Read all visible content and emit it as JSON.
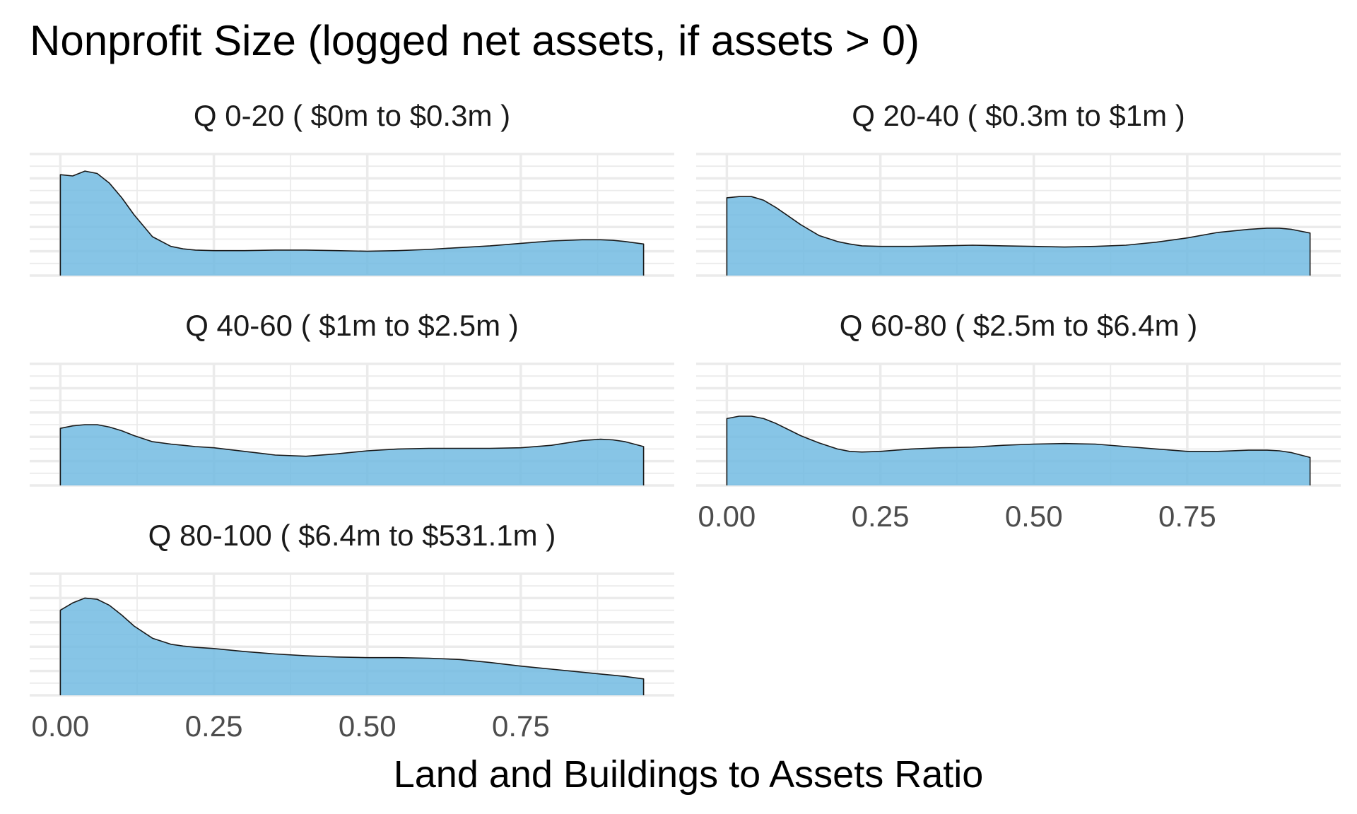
{
  "chart_data": {
    "type": "area",
    "subtype": "density-facets",
    "title": "Nonprofit Size (logged net assets, if assets > 0)",
    "xlabel": "Land and Buildings to Assets Ratio",
    "ylabel": "",
    "xlim": [
      -0.05,
      1.0
    ],
    "x_ticks": [
      "0.00",
      "0.25",
      "0.50",
      "0.75"
    ],
    "x_tick_values": [
      0,
      0.25,
      0.5,
      0.75
    ],
    "grid": true,
    "fill_color": "#6CB8E0",
    "outline_color": "#1a1a1a",
    "x": [
      0,
      0.02,
      0.04,
      0.06,
      0.08,
      0.1,
      0.12,
      0.15,
      0.18,
      0.2,
      0.22,
      0.25,
      0.3,
      0.35,
      0.4,
      0.45,
      0.5,
      0.55,
      0.6,
      0.65,
      0.7,
      0.75,
      0.8,
      0.85,
      0.88,
      0.9,
      0.92,
      0.95
    ],
    "panels": [
      {
        "label": "Q 0-20   ( $0m to $0.3m )",
        "values": [
          0.83,
          0.82,
          0.86,
          0.84,
          0.76,
          0.64,
          0.5,
          0.32,
          0.24,
          0.22,
          0.21,
          0.205,
          0.205,
          0.21,
          0.21,
          0.205,
          0.2,
          0.205,
          0.215,
          0.23,
          0.245,
          0.265,
          0.285,
          0.295,
          0.295,
          0.29,
          0.28,
          0.26
        ]
      },
      {
        "label": "Q 20-40   ( $0.3m to $1m )",
        "values": [
          0.64,
          0.65,
          0.65,
          0.62,
          0.56,
          0.49,
          0.42,
          0.33,
          0.28,
          0.26,
          0.245,
          0.24,
          0.24,
          0.245,
          0.25,
          0.245,
          0.24,
          0.235,
          0.24,
          0.25,
          0.275,
          0.31,
          0.355,
          0.38,
          0.39,
          0.39,
          0.38,
          0.35
        ]
      },
      {
        "label": "Q 40-60   ( $1m to $2.5m )",
        "values": [
          0.47,
          0.49,
          0.5,
          0.5,
          0.48,
          0.45,
          0.41,
          0.36,
          0.34,
          0.33,
          0.32,
          0.31,
          0.28,
          0.25,
          0.24,
          0.26,
          0.285,
          0.3,
          0.305,
          0.305,
          0.305,
          0.31,
          0.33,
          0.37,
          0.38,
          0.375,
          0.36,
          0.32
        ]
      },
      {
        "label": "Q 60-80   ( $2.5m to $6.4m )",
        "values": [
          0.55,
          0.57,
          0.57,
          0.55,
          0.51,
          0.46,
          0.41,
          0.35,
          0.3,
          0.28,
          0.275,
          0.28,
          0.3,
          0.31,
          0.315,
          0.33,
          0.34,
          0.345,
          0.34,
          0.32,
          0.3,
          0.28,
          0.28,
          0.29,
          0.29,
          0.285,
          0.27,
          0.23
        ]
      },
      {
        "label": "Q 80-100   ( $6.4m to $531.1m )",
        "values": [
          0.7,
          0.76,
          0.8,
          0.79,
          0.74,
          0.66,
          0.57,
          0.47,
          0.42,
          0.405,
          0.395,
          0.385,
          0.36,
          0.34,
          0.325,
          0.315,
          0.31,
          0.31,
          0.305,
          0.295,
          0.27,
          0.24,
          0.215,
          0.19,
          0.175,
          0.165,
          0.155,
          0.135
        ]
      }
    ]
  }
}
